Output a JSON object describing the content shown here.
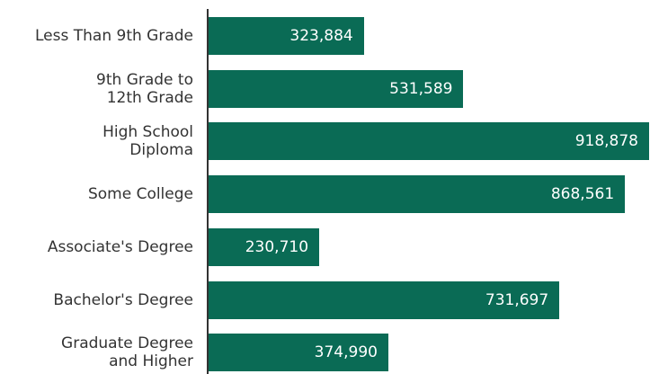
{
  "chart_data": {
    "type": "bar",
    "orientation": "horizontal",
    "color": "#0a6b55",
    "categories": [
      "Less Than 9th Grade",
      "9th Grade to\n12th Grade",
      "High School\nDiploma",
      "Some College",
      "Associate's Degree",
      "Bachelor's Degree",
      "Graduate Degree\nand Higher"
    ],
    "values": [
      323884,
      531589,
      918878,
      868561,
      230710,
      731697,
      374990
    ],
    "value_labels": [
      "323,884",
      "531,589",
      "918,878",
      "868,561",
      "230,710",
      "731,697",
      "374,990"
    ]
  }
}
